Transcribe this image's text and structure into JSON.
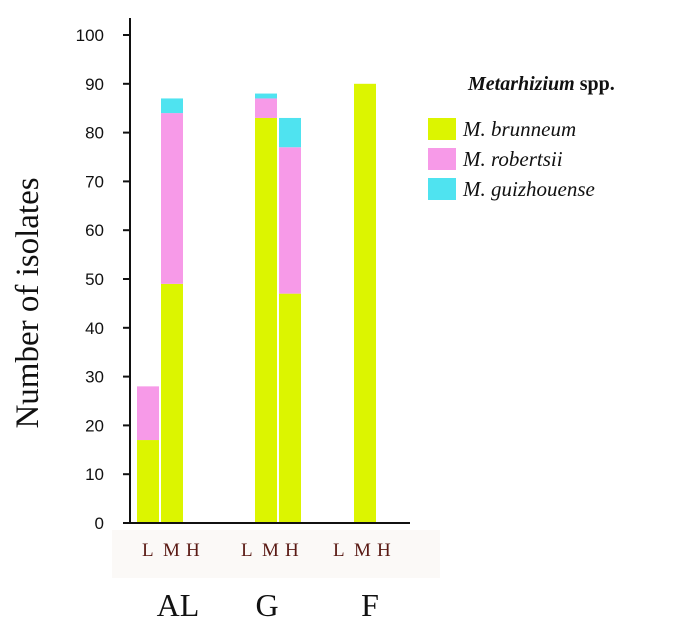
{
  "chart_data": {
    "type": "bar",
    "stacked": true,
    "ylabel": "Number of isolates",
    "ylim": [
      0,
      100
    ],
    "yticks": [
      0,
      10,
      20,
      30,
      40,
      50,
      60,
      70,
      80,
      90,
      100
    ],
    "groups": [
      {
        "label": "AL",
        "subcategories": [
          "L",
          "M",
          "H"
        ]
      },
      {
        "label": "G",
        "subcategories": [
          "L",
          "M",
          "H"
        ]
      },
      {
        "label": "F",
        "subcategories": [
          "L",
          "M",
          "H"
        ]
      }
    ],
    "categories": [
      "AL-L",
      "AL-M",
      "AL-H",
      "G-L",
      "G-M",
      "G-H",
      "F-L",
      "F-M",
      "F-H"
    ],
    "series": [
      {
        "name": "M. brunneum",
        "color": "#dcf500",
        "values": [
          17,
          49,
          0,
          83,
          47,
          0,
          0,
          90,
          0
        ]
      },
      {
        "name": "M. robertsii",
        "color": "#f79ae8",
        "values": [
          11,
          35,
          0,
          4,
          30,
          0,
          0,
          0,
          0
        ]
      },
      {
        "name": "M. guizhouense",
        "color": "#4fe3f0",
        "values": [
          0,
          3,
          0,
          1,
          6,
          0,
          0,
          0,
          0
        ]
      }
    ],
    "legend": {
      "title_genus": "Metarhizium",
      "title_suffix": " spp.",
      "placement": "right"
    },
    "grid": false
  }
}
